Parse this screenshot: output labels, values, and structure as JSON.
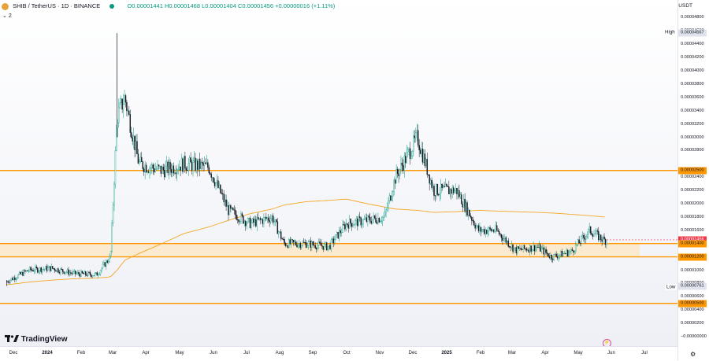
{
  "header": {
    "symbol": "SHIB / TetherUS · 1D · BINANCE",
    "ohlc": "O0.00001441 H0.00001468 L0.00001404 C0.00001456 +0.00000016 (+1.11%)",
    "indicator_count": "2"
  },
  "branding": {
    "logo_text": "TradingView"
  },
  "price_axis": {
    "currency": "USDT",
    "ticks": [
      "0.00004800",
      "0.00004600",
      "0.00004400",
      "0.00004200",
      "0.00004000",
      "0.00003800",
      "0.00003600",
      "0.00003400",
      "0.00003200",
      "0.00003000",
      "0.00002800",
      "0.00002400",
      "0.00002200",
      "0.00002000",
      "0.00001800",
      "0.00001600",
      "0.00001000",
      "0.00000800",
      "0.00000600",
      "0.00000400",
      "0.00000200",
      "−0.00000000"
    ],
    "labels": [
      {
        "text": "0.00004567",
        "style": "gray"
      },
      {
        "text": "0.00002500",
        "style": "orange"
      },
      {
        "text": "0.00001456",
        "style": "red"
      },
      {
        "text": "0.00001400",
        "style": "orange"
      },
      {
        "text": "0.00001200",
        "style": "orange"
      },
      {
        "text": "0.00000761",
        "style": "gray"
      },
      {
        "text": "0.00000500",
        "style": "orange"
      }
    ],
    "high_tag": "High",
    "low_tag": "Low"
  },
  "time_axis": {
    "labels": [
      "Dec",
      "2024",
      "Feb",
      "Mar",
      "Apr",
      "May",
      "Jun",
      "Jul",
      "Aug",
      "Sep",
      "Oct",
      "Nov",
      "Dec",
      "2025",
      "Feb",
      "Mar",
      "Apr",
      "May",
      "Jun",
      "Jul"
    ]
  },
  "chart_data": {
    "type": "candlestick",
    "symbol": "SHIB/USDT",
    "interval": "1D",
    "exchange": "BINANCE",
    "x": [
      "2023-11-25",
      "2023-12-15",
      "2024-01-05",
      "2024-01-25",
      "2024-02-15",
      "2024-02-28",
      "2024-03-05",
      "2024-03-12",
      "2024-03-25",
      "2024-04-15",
      "2024-05-05",
      "2024-05-28",
      "2024-06-15",
      "2024-07-05",
      "2024-07-25",
      "2024-08-05",
      "2024-08-25",
      "2024-09-15",
      "2024-10-01",
      "2024-10-20",
      "2024-11-05",
      "2024-11-15",
      "2024-12-05",
      "2024-12-20",
      "2025-01-10",
      "2025-01-30",
      "2025-02-15",
      "2025-03-05",
      "2025-03-25",
      "2025-04-07",
      "2025-04-25",
      "2025-05-12",
      "2025-05-25"
    ],
    "close_approx": [
      8.3e-06,
      1e-05,
      1.03e-05,
      9.5e-06,
      9.3e-06,
      1.2e-05,
      3.3e-05,
      3.6e-05,
      2.6e-05,
      2.5e-05,
      2.6e-05,
      2.55e-05,
      1.9e-05,
      1.7e-05,
      1.8e-05,
      1.4e-05,
      1.4e-05,
      1.35e-05,
      1.7e-05,
      1.75e-05,
      1.8e-05,
      2.4e-05,
      3e-05,
      2.2e-05,
      2.2e-05,
      1.6e-05,
      1.6e-05,
      1.3e-05,
      1.35e-05,
      1.2e-05,
      1.28e-05,
      1.6e-05,
      1.45e-05
    ],
    "high": 4.567e-05,
    "low": 7.61e-06,
    "moving_average_approx": [
      7.8e-06,
      8.2e-06,
      8.5e-06,
      8.7e-06,
      8.8e-06,
      9e-06,
      1e-05,
      1.15e-05,
      1.25e-05,
      1.4e-05,
      1.55e-05,
      1.65e-05,
      1.75e-05,
      1.85e-05,
      1.92e-05,
      1.98e-05,
      2.03e-05,
      2.05e-05,
      2.07e-05,
      2e-05,
      1.95e-05,
      1.92e-05,
      1.9e-05,
      1.87e-05,
      1.88e-05,
      1.9e-05,
      1.89e-05,
      1.88e-05,
      1.87e-05,
      1.86e-05,
      1.84e-05,
      1.82e-05,
      1.8e-05
    ],
    "horizontal_levels": [
      2.5e-05,
      1.4e-05,
      1.2e-05,
      5e-06
    ],
    "zone": [
      1.2e-05,
      1.4e-05
    ],
    "ylim": [
      -2e-07,
      4.9e-05
    ],
    "colors": {
      "up": "#089981",
      "down": "#131722",
      "level": "#ff9800",
      "zone": "#fce8c8",
      "ma": "#f5a623",
      "last": "#f23645"
    }
  }
}
